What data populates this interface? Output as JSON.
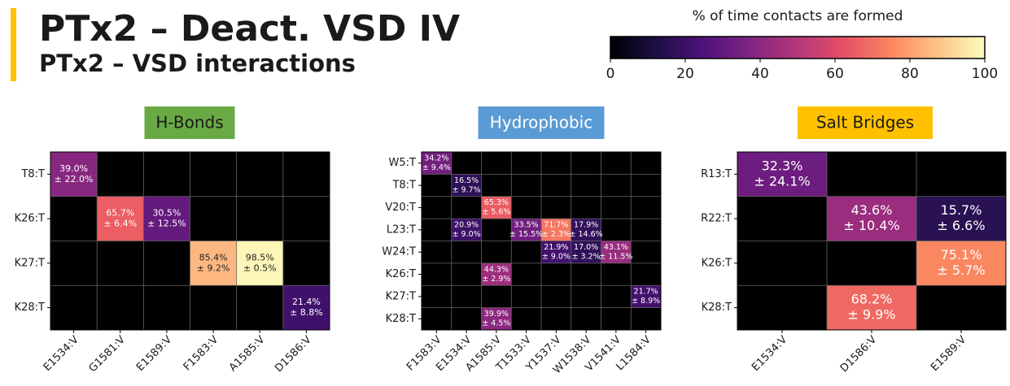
{
  "header": {
    "title": "PTx2 – Deact. VSD IV",
    "subtitle": "PTx2 – VSD interactions"
  },
  "colorbar": {
    "label": "% of time contacts are formed",
    "colormap": "magma",
    "lim": [
      0,
      100
    ],
    "ticks": [
      0,
      20,
      40,
      60,
      80,
      100
    ]
  },
  "chart_data": [
    {
      "type": "heatmap",
      "title": "H-Bonds",
      "badge_color": "#6aaa45",
      "badge_text_color": "#1a1a1a",
      "rows": [
        "T8:T",
        "K26:T",
        "K27:T",
        "K28:T"
      ],
      "columns": [
        "E1534:V",
        "G1581:V",
        "E1589:V",
        "F1583:V",
        "A1585:V",
        "D1586:V"
      ],
      "values": [
        [
          39.0,
          null,
          null,
          null,
          null,
          null
        ],
        [
          null,
          65.7,
          30.5,
          null,
          null,
          null
        ],
        [
          null,
          null,
          null,
          85.4,
          98.5,
          null
        ],
        [
          null,
          null,
          null,
          null,
          null,
          21.4
        ]
      ],
      "value_labels": [
        [
          "39.0%",
          null,
          null,
          null,
          null,
          null
        ],
        [
          null,
          "65.7%",
          "30.5%",
          null,
          null,
          null
        ],
        [
          null,
          null,
          null,
          "85.4%",
          "98.5%",
          null
        ],
        [
          null,
          null,
          null,
          null,
          null,
          "21.4%"
        ]
      ],
      "errors": [
        [
          22.0,
          null,
          null,
          null,
          null,
          null
        ],
        [
          null,
          6.4,
          12.5,
          null,
          null,
          null
        ],
        [
          null,
          null,
          null,
          9.2,
          0.5,
          null
        ],
        [
          null,
          null,
          null,
          null,
          null,
          8.8
        ]
      ],
      "error_labels": [
        [
          "± 22.0%",
          null,
          null,
          null,
          null,
          null
        ],
        [
          null,
          "± 6.4%",
          "± 12.5%",
          null,
          null,
          null
        ],
        [
          null,
          null,
          null,
          "± 9.2%",
          "± 0.5%",
          null
        ],
        [
          null,
          null,
          null,
          null,
          null,
          "± 8.8%"
        ]
      ]
    },
    {
      "type": "heatmap",
      "title": "Hydrophobic",
      "badge_color": "#5b9bd5",
      "badge_text_color": "#ffffff",
      "rows": [
        "W5:T",
        "T8:T",
        "V20:T",
        "L23:T",
        "W24:T",
        "K26:T",
        "K27:T",
        "K28:T"
      ],
      "columns": [
        "F1583:V",
        "E1534:V",
        "A1585:V",
        "T1533:V",
        "Y1537:V",
        "W1538:V",
        "V1541:V",
        "L1584:V"
      ],
      "values": [
        [
          34.2,
          null,
          null,
          null,
          null,
          null,
          null,
          null
        ],
        [
          null,
          16.5,
          null,
          null,
          null,
          null,
          null,
          null
        ],
        [
          null,
          null,
          65.3,
          null,
          null,
          null,
          null,
          null
        ],
        [
          null,
          20.9,
          null,
          33.5,
          71.7,
          17.9,
          null,
          null
        ],
        [
          null,
          null,
          null,
          null,
          21.9,
          17.0,
          43.1,
          null
        ],
        [
          null,
          null,
          44.3,
          null,
          null,
          null,
          null,
          null
        ],
        [
          null,
          null,
          null,
          null,
          null,
          null,
          null,
          21.7
        ],
        [
          null,
          null,
          39.9,
          null,
          null,
          null,
          null,
          null
        ]
      ],
      "value_labels": [
        [
          "34.2%",
          null,
          null,
          null,
          null,
          null,
          null,
          null
        ],
        [
          null,
          "16.5%",
          null,
          null,
          null,
          null,
          null,
          null
        ],
        [
          null,
          null,
          "65.3%",
          null,
          null,
          null,
          null,
          null
        ],
        [
          null,
          "20.9%",
          null,
          "33.5%",
          "71.7%",
          "17.9%",
          null,
          null
        ],
        [
          null,
          null,
          null,
          null,
          "21.9%",
          "17.0%",
          "43.1%",
          null
        ],
        [
          null,
          null,
          "44.3%",
          null,
          null,
          null,
          null,
          null
        ],
        [
          null,
          null,
          null,
          null,
          null,
          null,
          null,
          "21.7%"
        ],
        [
          null,
          null,
          "39.9%",
          null,
          null,
          null,
          null,
          null
        ]
      ],
      "errors": [
        [
          9.4,
          null,
          null,
          null,
          null,
          null,
          null,
          null
        ],
        [
          null,
          9.7,
          null,
          null,
          null,
          null,
          null,
          null
        ],
        [
          null,
          null,
          5.6,
          null,
          null,
          null,
          null,
          null
        ],
        [
          null,
          9.0,
          null,
          15.5,
          2.3,
          14.6,
          null,
          null
        ],
        [
          null,
          null,
          null,
          null,
          9.0,
          3.2,
          11.5,
          null
        ],
        [
          null,
          null,
          2.9,
          null,
          null,
          null,
          null,
          null
        ],
        [
          null,
          null,
          null,
          null,
          null,
          null,
          null,
          8.9
        ],
        [
          null,
          null,
          4.5,
          null,
          null,
          null,
          null,
          null
        ]
      ],
      "error_labels": [
        [
          "± 9.4%",
          null,
          null,
          null,
          null,
          null,
          null,
          null
        ],
        [
          null,
          "± 9.7%",
          null,
          null,
          null,
          null,
          null,
          null
        ],
        [
          null,
          null,
          "± 5.6%",
          null,
          null,
          null,
          null,
          null
        ],
        [
          null,
          "± 9.0%",
          null,
          "± 15.5%",
          "± 2.3%",
          "± 14.6%",
          null,
          null
        ],
        [
          null,
          null,
          null,
          null,
          "± 9.0%",
          "± 3.2%",
          "± 11.5%",
          null
        ],
        [
          null,
          null,
          "± 2.9%",
          null,
          null,
          null,
          null,
          null
        ],
        [
          null,
          null,
          null,
          null,
          null,
          null,
          null,
          "± 8.9%"
        ],
        [
          null,
          null,
          "± 4.5%",
          null,
          null,
          null,
          null,
          null
        ]
      ]
    },
    {
      "type": "heatmap",
      "title": "Salt Bridges",
      "badge_color": "#ffc000",
      "badge_text_color": "#1a1a1a",
      "rows": [
        "R13:T",
        "R22:T",
        "K26:T",
        "K28:T"
      ],
      "columns": [
        "E1534:V",
        "D1586:V",
        "E1589:V"
      ],
      "values": [
        [
          32.3,
          null,
          null
        ],
        [
          null,
          43.6,
          15.7
        ],
        [
          null,
          null,
          75.1
        ],
        [
          null,
          68.2,
          null
        ]
      ],
      "value_labels": [
        [
          "32.3%",
          null,
          null
        ],
        [
          null,
          "43.6%",
          "15.7%"
        ],
        [
          null,
          null,
          "75.1%"
        ],
        [
          null,
          "68.2%",
          null
        ]
      ],
      "errors": [
        [
          24.1,
          null,
          null
        ],
        [
          null,
          10.4,
          6.6
        ],
        [
          null,
          null,
          5.7
        ],
        [
          null,
          9.9,
          null
        ]
      ],
      "error_labels": [
        [
          "± 24.1%",
          null,
          null
        ],
        [
          null,
          "± 10.4%",
          "± 6.6%"
        ],
        [
          null,
          null,
          "± 5.7%"
        ],
        [
          null,
          "± 9.9%",
          null
        ]
      ]
    }
  ]
}
